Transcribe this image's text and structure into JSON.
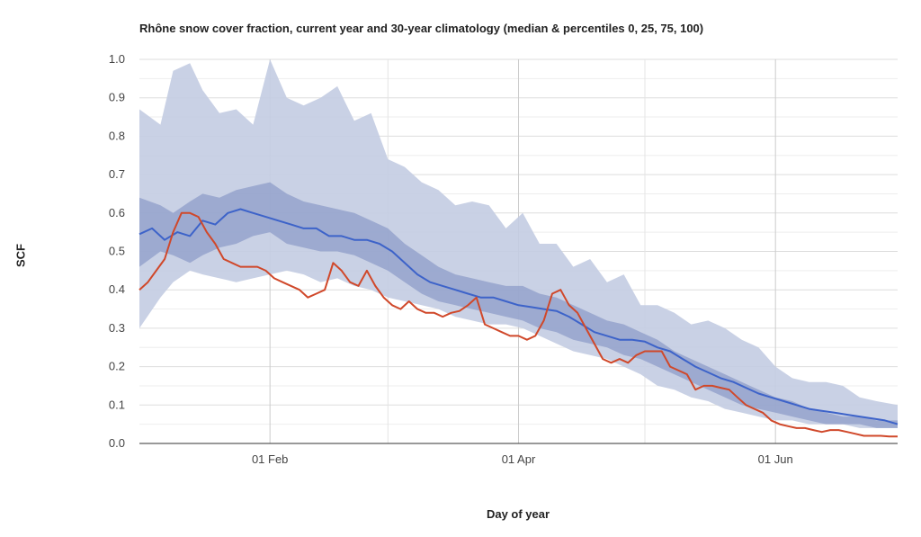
{
  "chart_data": {
    "type": "area",
    "title": "Rhône snow cover fraction, current year and 30-year climatology (median & percentiles 0, 25, 75, 100)",
    "xlabel": "Day of year",
    "ylabel": "SCF",
    "x_unit": "day of year",
    "xlim": [
      1,
      181
    ],
    "ylim": [
      0,
      1
    ],
    "y_ticks": [
      "0.0",
      "0.1",
      "0.2",
      "0.3",
      "0.4",
      "0.5",
      "0.6",
      "0.7",
      "0.8",
      "0.9",
      "1.0"
    ],
    "x_ticks": [
      {
        "label": "01 Feb",
        "day": 32
      },
      {
        "label": "01 Apr",
        "day": 91
      },
      {
        "label": "01 Jun",
        "day": 152
      }
    ],
    "x_minor_gridlines": [
      60,
      121
    ],
    "grid": true,
    "legend": "none",
    "colors": {
      "min_max_band": "#c3cce2",
      "iqr_band": "#8e9cc8",
      "median": "#3d63c9",
      "current": "#d0482a",
      "grid": "#dddddd",
      "axis": "#333333"
    },
    "series": [
      {
        "role": "percentile-0-100-band",
        "x": [
          1,
          6,
          9,
          13,
          16,
          20,
          24,
          28,
          32,
          36,
          40,
          44,
          48,
          52,
          56,
          60,
          64,
          68,
          72,
          76,
          80,
          84,
          88,
          92,
          96,
          100,
          104,
          108,
          112,
          116,
          120,
          124,
          128,
          132,
          136,
          140,
          144,
          148,
          152,
          156,
          160,
          164,
          168,
          172,
          176,
          181
        ],
        "lower": [
          0.3,
          0.38,
          0.42,
          0.45,
          0.44,
          0.43,
          0.42,
          0.43,
          0.44,
          0.45,
          0.44,
          0.42,
          0.43,
          0.41,
          0.4,
          0.38,
          0.37,
          0.36,
          0.35,
          0.33,
          0.32,
          0.31,
          0.31,
          0.3,
          0.28,
          0.26,
          0.24,
          0.23,
          0.22,
          0.2,
          0.18,
          0.15,
          0.14,
          0.12,
          0.11,
          0.09,
          0.08,
          0.07,
          0.06,
          0.06,
          0.05,
          0.05,
          0.05,
          0.04,
          0.04,
          0.04
        ],
        "upper": [
          0.87,
          0.83,
          0.97,
          0.99,
          0.92,
          0.86,
          0.87,
          0.83,
          1.0,
          0.9,
          0.88,
          0.9,
          0.93,
          0.84,
          0.86,
          0.74,
          0.72,
          0.68,
          0.66,
          0.62,
          0.63,
          0.62,
          0.56,
          0.6,
          0.52,
          0.52,
          0.46,
          0.48,
          0.42,
          0.44,
          0.36,
          0.36,
          0.34,
          0.31,
          0.32,
          0.3,
          0.27,
          0.25,
          0.2,
          0.17,
          0.16,
          0.16,
          0.15,
          0.12,
          0.11,
          0.1
        ]
      },
      {
        "role": "percentile-25-75-band",
        "x": [
          1,
          6,
          9,
          13,
          16,
          20,
          24,
          28,
          32,
          36,
          40,
          44,
          48,
          52,
          56,
          60,
          64,
          68,
          72,
          76,
          80,
          84,
          88,
          92,
          96,
          100,
          104,
          108,
          112,
          116,
          120,
          124,
          128,
          132,
          136,
          140,
          144,
          148,
          152,
          156,
          160,
          164,
          168,
          172,
          176,
          181
        ],
        "lower": [
          0.46,
          0.5,
          0.49,
          0.47,
          0.49,
          0.51,
          0.52,
          0.54,
          0.55,
          0.52,
          0.51,
          0.5,
          0.5,
          0.49,
          0.47,
          0.45,
          0.42,
          0.39,
          0.37,
          0.36,
          0.35,
          0.34,
          0.33,
          0.32,
          0.3,
          0.29,
          0.27,
          0.26,
          0.25,
          0.23,
          0.22,
          0.2,
          0.18,
          0.16,
          0.14,
          0.12,
          0.1,
          0.09,
          0.08,
          0.07,
          0.06,
          0.05,
          0.05,
          0.05,
          0.04,
          0.04
        ],
        "upper": [
          0.64,
          0.62,
          0.6,
          0.63,
          0.65,
          0.64,
          0.66,
          0.67,
          0.68,
          0.65,
          0.63,
          0.62,
          0.61,
          0.6,
          0.58,
          0.56,
          0.52,
          0.49,
          0.46,
          0.44,
          0.43,
          0.42,
          0.41,
          0.41,
          0.39,
          0.38,
          0.36,
          0.34,
          0.32,
          0.31,
          0.29,
          0.27,
          0.24,
          0.22,
          0.2,
          0.18,
          0.16,
          0.14,
          0.12,
          0.11,
          0.09,
          0.08,
          0.07,
          0.07,
          0.06,
          0.06
        ]
      },
      {
        "role": "median",
        "x": [
          1,
          4,
          7,
          10,
          13,
          16,
          19,
          22,
          25,
          28,
          31,
          34,
          37,
          40,
          43,
          46,
          49,
          52,
          55,
          58,
          61,
          64,
          67,
          70,
          73,
          76,
          79,
          82,
          85,
          88,
          91,
          94,
          97,
          100,
          103,
          106,
          109,
          112,
          115,
          118,
          121,
          124,
          127,
          130,
          133,
          136,
          139,
          142,
          145,
          148,
          151,
          154,
          157,
          160,
          163,
          166,
          169,
          172,
          175,
          178,
          181
        ],
        "values": [
          0.545,
          0.56,
          0.53,
          0.55,
          0.54,
          0.58,
          0.57,
          0.6,
          0.61,
          0.6,
          0.59,
          0.58,
          0.57,
          0.56,
          0.56,
          0.54,
          0.54,
          0.53,
          0.53,
          0.52,
          0.5,
          0.47,
          0.44,
          0.42,
          0.41,
          0.4,
          0.39,
          0.38,
          0.38,
          0.37,
          0.36,
          0.355,
          0.35,
          0.345,
          0.33,
          0.31,
          0.29,
          0.28,
          0.27,
          0.27,
          0.265,
          0.25,
          0.24,
          0.22,
          0.2,
          0.185,
          0.17,
          0.16,
          0.145,
          0.13,
          0.12,
          0.11,
          0.1,
          0.09,
          0.085,
          0.08,
          0.075,
          0.07,
          0.065,
          0.06,
          0.05
        ]
      },
      {
        "role": "current-year",
        "x": [
          1,
          3,
          5,
          7,
          9,
          11,
          13,
          15,
          17,
          19,
          21,
          23,
          25,
          27,
          29,
          31,
          33,
          35,
          37,
          39,
          41,
          43,
          45,
          47,
          49,
          51,
          53,
          55,
          57,
          59,
          61,
          63,
          65,
          67,
          69,
          71,
          73,
          75,
          77,
          79,
          81,
          83,
          85,
          87,
          89,
          91,
          93,
          95,
          97,
          99,
          101,
          103,
          105,
          107,
          109,
          111,
          113,
          115,
          117,
          119,
          121,
          123,
          125,
          127,
          129,
          131,
          133,
          135,
          137,
          139,
          141,
          143,
          145,
          147,
          149,
          151,
          153,
          155,
          157,
          159,
          161,
          163,
          165,
          167,
          169,
          171,
          173,
          175,
          177,
          179,
          181
        ],
        "values": [
          0.4,
          0.42,
          0.45,
          0.48,
          0.55,
          0.6,
          0.6,
          0.59,
          0.55,
          0.52,
          0.48,
          0.47,
          0.46,
          0.46,
          0.46,
          0.45,
          0.43,
          0.42,
          0.41,
          0.4,
          0.38,
          0.39,
          0.4,
          0.47,
          0.45,
          0.42,
          0.41,
          0.45,
          0.41,
          0.38,
          0.36,
          0.35,
          0.37,
          0.35,
          0.34,
          0.34,
          0.33,
          0.34,
          0.345,
          0.36,
          0.38,
          0.31,
          0.3,
          0.29,
          0.28,
          0.28,
          0.27,
          0.28,
          0.32,
          0.39,
          0.4,
          0.36,
          0.34,
          0.3,
          0.26,
          0.22,
          0.21,
          0.22,
          0.21,
          0.23,
          0.24,
          0.24,
          0.24,
          0.2,
          0.19,
          0.18,
          0.14,
          0.15,
          0.15,
          0.145,
          0.14,
          0.12,
          0.1,
          0.09,
          0.08,
          0.06,
          0.05,
          0.045,
          0.04,
          0.04,
          0.035,
          0.03,
          0.035,
          0.035,
          0.03,
          0.025,
          0.02,
          0.02,
          0.02,
          0.018,
          0.018
        ]
      }
    ]
  }
}
